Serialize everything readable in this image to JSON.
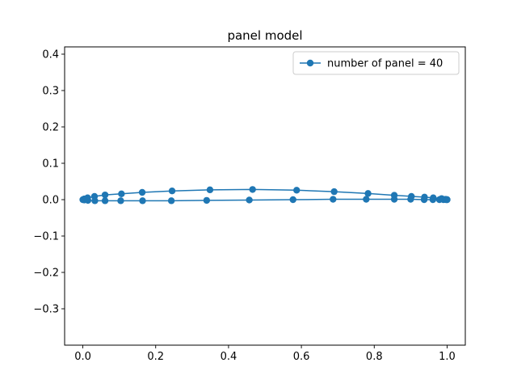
{
  "chart_data": {
    "type": "line",
    "title": "panel model",
    "xlabel": "",
    "ylabel": "",
    "xlim": [
      -0.05,
      1.05
    ],
    "ylim": [
      -0.4,
      0.42
    ],
    "x_ticks": [
      0.0,
      0.2,
      0.4,
      0.6,
      0.8,
      1.0
    ],
    "x_tick_labels": [
      "0.0",
      "0.2",
      "0.4",
      "0.6",
      "0.8",
      "1.0"
    ],
    "y_ticks": [
      -0.3,
      -0.2,
      -0.1,
      0.0,
      0.1,
      0.2,
      0.3,
      0.4
    ],
    "y_tick_labels": [
      "−0.3",
      "−0.2",
      "−0.1",
      "0.0",
      "0.1",
      "0.2",
      "0.3",
      "0.4"
    ],
    "grid": false,
    "legend_position": "top-right",
    "series": [
      {
        "name": "number of panel = 40",
        "color": "#1f77b4",
        "marker": "circle",
        "x": [
          1.0,
          0.996,
          0.985,
          0.962,
          0.938,
          0.902,
          0.855,
          0.783,
          0.69,
          0.587,
          0.466,
          0.349,
          0.245,
          0.163,
          0.106,
          0.061,
          0.032,
          0.013,
          0.004,
          0.0,
          0.004,
          0.014,
          0.033,
          0.061,
          0.104,
          0.164,
          0.243,
          0.34,
          0.457,
          0.577,
          0.687,
          0.778,
          0.855,
          0.9,
          0.937,
          0.961,
          0.979,
          0.99,
          0.997,
          1.0
        ],
        "y": [
          0.0,
          0.001,
          0.003,
          0.005,
          0.007,
          0.009,
          0.012,
          0.017,
          0.022,
          0.026,
          0.028,
          0.027,
          0.024,
          0.02,
          0.016,
          0.013,
          0.009,
          0.005,
          0.002,
          0.0,
          -0.001,
          -0.002,
          -0.003,
          -0.003,
          -0.003,
          -0.003,
          -0.003,
          -0.002,
          -0.001,
          0.0,
          0.001,
          0.001,
          0.001,
          0.001,
          0.0,
          0.0,
          0.0,
          0.0,
          0.0,
          0.0
        ]
      }
    ]
  }
}
